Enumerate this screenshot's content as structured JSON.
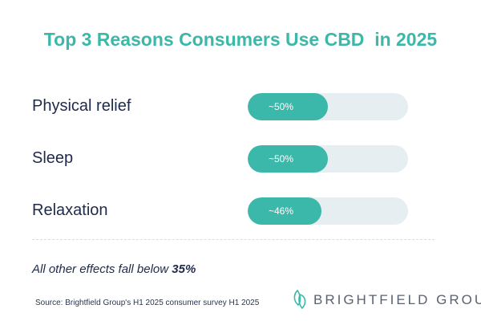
{
  "chart_data": {
    "type": "bar",
    "orientation": "horizontal",
    "title": "Top 3 Reasons Consumers Use CBD  in 2025",
    "categories": [
      "Physical relief",
      "Sleep",
      "Relaxation"
    ],
    "values": [
      50,
      50,
      46
    ],
    "value_labels": [
      "~50%",
      "~50%",
      "~46%"
    ],
    "xlim": [
      0,
      100
    ],
    "xlabel": "",
    "ylabel": "",
    "grid": false
  },
  "note": {
    "prefix": "All other effects fall below ",
    "emphasis": "35%"
  },
  "source": "Source: Brightfield Group's H1 2025 consumer survey H1 2025",
  "logo": {
    "text": "BRIGHTFIELD GROUP"
  },
  "colors": {
    "accent": "#3bb8a9",
    "track": "#e7eef2",
    "text": "#1f2a4a"
  }
}
